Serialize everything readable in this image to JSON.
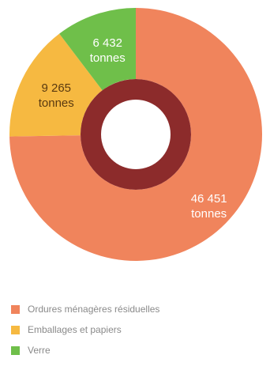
{
  "chart_data": {
    "type": "donut",
    "categories": [
      "Ordures ménagères résiduelles",
      "Emballages et papiers",
      "Verre"
    ],
    "values": [
      46451,
      9265,
      6432
    ],
    "value_labels": [
      "46 451 tonnes",
      "9 265 tonnes",
      "6 432 tonnes"
    ],
    "colors": [
      "#f0845c",
      "#f6b941",
      "#6fbf4a"
    ]
  }
}
